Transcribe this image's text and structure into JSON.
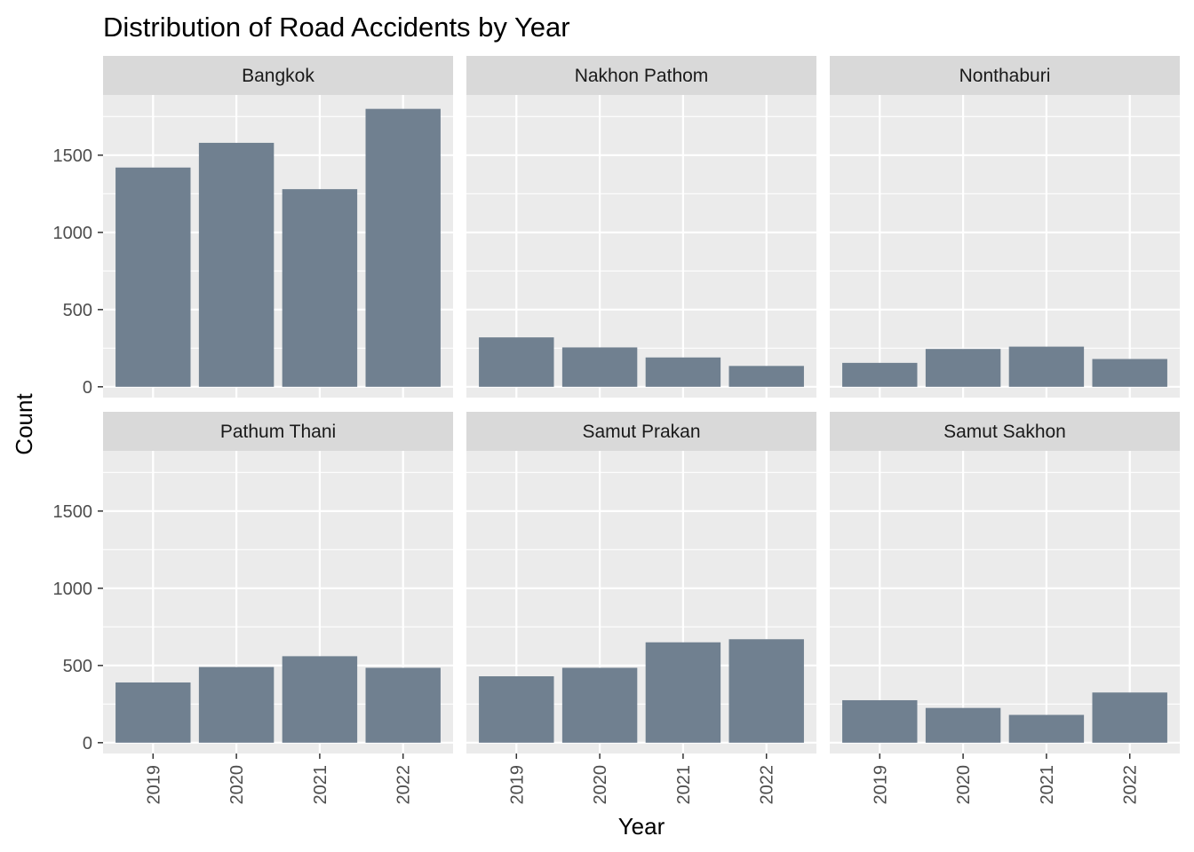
{
  "chart_data": {
    "type": "bar",
    "layout": "facet_wrap",
    "title": "Distribution of Road Accidents by Year",
    "xlabel": "Year",
    "ylabel": "Count",
    "categories": [
      "2019",
      "2020",
      "2021",
      "2022"
    ],
    "y_ticks": [
      0,
      500,
      1000,
      1500
    ],
    "ylim": [
      -70,
      1890
    ],
    "bar_color": "#708090",
    "panel_background": "#ebebeb",
    "strip_background": "#d9d9d9",
    "grid": true,
    "legend": "none",
    "panels": [
      {
        "name": "Bangkok",
        "values": [
          1420,
          1580,
          1280,
          1800
        ]
      },
      {
        "name": "Nakhon Pathom",
        "values": [
          320,
          255,
          190,
          135
        ]
      },
      {
        "name": "Nonthaburi",
        "values": [
          155,
          245,
          260,
          180
        ]
      },
      {
        "name": "Pathum Thani",
        "values": [
          390,
          490,
          560,
          485
        ]
      },
      {
        "name": "Samut Prakan",
        "values": [
          430,
          485,
          650,
          670
        ]
      },
      {
        "name": "Samut Sakhon",
        "values": [
          275,
          225,
          180,
          325
        ]
      }
    ]
  }
}
